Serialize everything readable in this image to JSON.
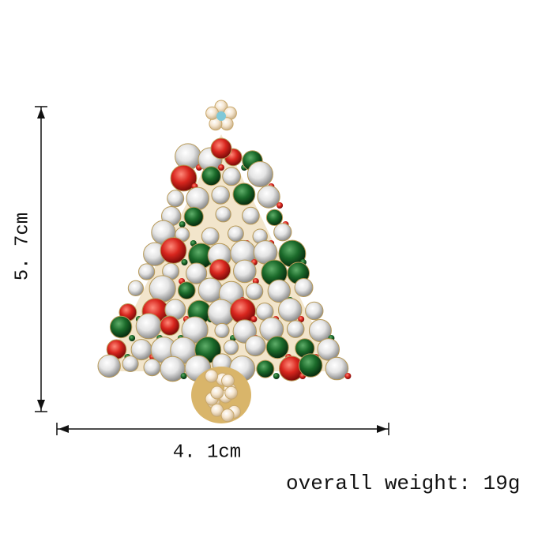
{
  "height_label": "5. 7cm",
  "width_label": "4. 1cm",
  "weight_label": "overall weight: 19g"
}
